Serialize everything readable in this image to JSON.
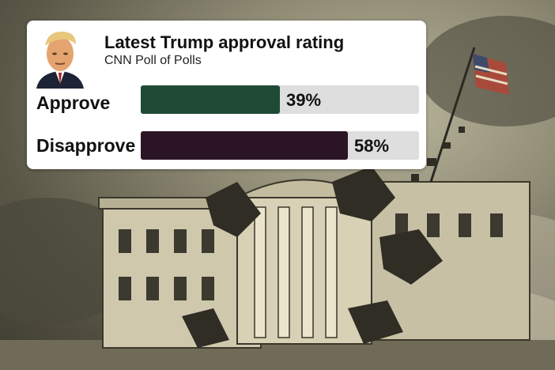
{
  "card": {
    "title": "Latest Trump approval rating",
    "subtitle": "CNN Poll of Polls"
  },
  "chart_data": {
    "type": "bar",
    "orientation": "horizontal",
    "categories": [
      "Approve",
      "Disapprove"
    ],
    "values": [
      39,
      58
    ],
    "value_labels": [
      "39%",
      "58%"
    ],
    "colors": [
      "#1f4a36",
      "#2b1524"
    ],
    "track_color": "#dedede",
    "xlim": [
      0,
      100
    ]
  },
  "background": {
    "description_icon": "white-house-collapse-illustration"
  }
}
